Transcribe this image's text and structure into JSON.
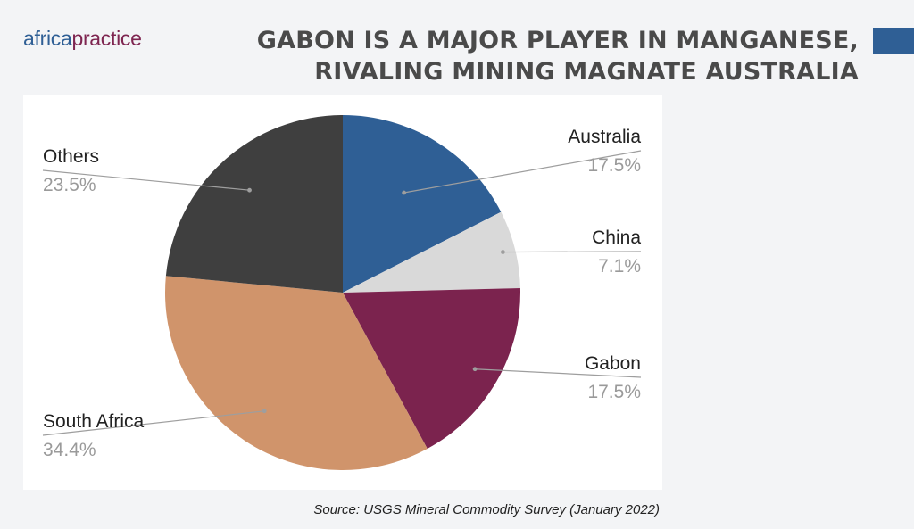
{
  "header": {
    "logo_part1": "africa",
    "logo_part2": "practice",
    "title_line1": "GABON IS A MAJOR PLAYER IN MANGANESE,",
    "title_line2": "RIVALING MINING MAGNATE AUSTRALIA"
  },
  "colors": {
    "accent": "#2f5f95",
    "logo_secondary": "#7e2550"
  },
  "chart_data": {
    "type": "pie",
    "start_angle_deg": 0,
    "direction": "clockwise",
    "slices": [
      {
        "label": "Australia",
        "value": 17.5,
        "display": "17.5%",
        "color": "#2f5f95"
      },
      {
        "label": "China",
        "value": 7.1,
        "display": "7.1%",
        "color": "#d9d9d9"
      },
      {
        "label": "Gabon",
        "value": 17.5,
        "display": "17.5%",
        "color": "#7b234e"
      },
      {
        "label": "South Africa",
        "value": 34.4,
        "display": "34.4%",
        "color": "#d0946b"
      },
      {
        "label": "Others",
        "value": 23.5,
        "display": "23.5%",
        "color": "#3f3f3f"
      }
    ]
  },
  "footer": {
    "source": "Source: USGS Mineral Commodity Survey (January 2022)"
  }
}
